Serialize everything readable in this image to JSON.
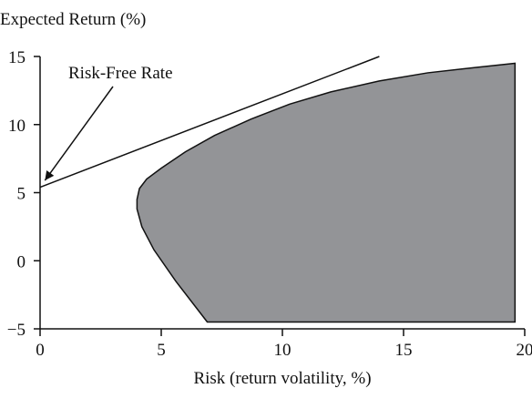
{
  "chart_data": {
    "type": "area",
    "title": "",
    "ylabel": "Expected Return (%)",
    "xlabel": "Risk (return volatility, %)",
    "xlim": [
      0,
      20
    ],
    "ylim": [
      -5,
      15
    ],
    "x_ticks": [
      "0",
      "5",
      "10",
      "15",
      "20"
    ],
    "y_ticks": [
      "15",
      "10",
      "5",
      "0",
      "−5"
    ],
    "x_tick_values": [
      0,
      5,
      10,
      15,
      20
    ],
    "y_tick_values": [
      15,
      10,
      5,
      0,
      -5
    ],
    "grid": false,
    "series": [
      {
        "kind": "feasible-region",
        "fill": "#939497",
        "points": [
          {
            "x": 6.9,
            "y": -4.5
          },
          {
            "x": 5.6,
            "y": -1.5
          },
          {
            "x": 4.7,
            "y": 0.8
          },
          {
            "x": 4.2,
            "y": 2.5
          },
          {
            "x": 4.0,
            "y": 3.8
          },
          {
            "x": 4.0,
            "y": 4.5
          },
          {
            "x": 4.1,
            "y": 5.3
          },
          {
            "x": 4.4,
            "y": 6.0
          },
          {
            "x": 5.0,
            "y": 6.8
          },
          {
            "x": 6.0,
            "y": 8.0
          },
          {
            "x": 7.2,
            "y": 9.2
          },
          {
            "x": 8.7,
            "y": 10.4
          },
          {
            "x": 10.3,
            "y": 11.5
          },
          {
            "x": 12.0,
            "y": 12.4
          },
          {
            "x": 14.0,
            "y": 13.2
          },
          {
            "x": 16.0,
            "y": 13.8
          },
          {
            "x": 18.0,
            "y": 14.2
          },
          {
            "x": 19.6,
            "y": 14.5
          },
          {
            "x": 19.6,
            "y": -4.5
          }
        ]
      },
      {
        "kind": "tangent-line",
        "stroke": "#111111",
        "points": [
          {
            "x": 0,
            "y": 5.4
          },
          {
            "x": 14.0,
            "y": 15.0
          }
        ]
      }
    ],
    "annotations": [
      {
        "text": "Risk-Free Rate",
        "point": {
          "x": 0.2,
          "y": 5.9
        }
      }
    ]
  }
}
